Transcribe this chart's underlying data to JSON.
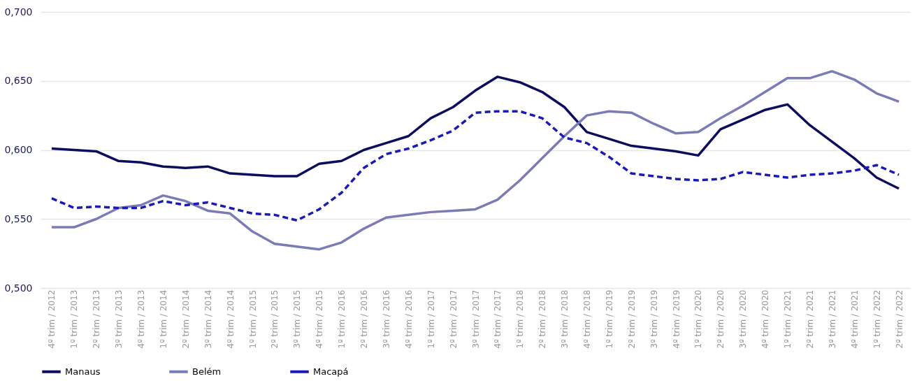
{
  "chart_data": {
    "type": "line",
    "categories": [
      "4º trim / 2012",
      "1º trim / 2013",
      "2º trim / 2013",
      "3º trim / 2013",
      "4º trim / 2013",
      "1º trim / 2014",
      "2º trim / 2014",
      "3º trim / 2014",
      "4º trim / 2014",
      "1º trim / 2015",
      "2º trim / 2015",
      "3º trim / 2015",
      "4º trim / 2015",
      "1º trim / 2016",
      "2º trim / 2016",
      "3º trim / 2016",
      "4º trim / 2016",
      "1º trim / 2017",
      "2º trim / 2017",
      "3º trim / 2017",
      "4º trim / 2017",
      "1º trim / 2018",
      "2º trim / 2018",
      "3º trim / 2018",
      "4º trim / 2018",
      "1º trim / 2019",
      "2º trim / 2019",
      "3º trim / 2019",
      "4º trim / 2019",
      "1º trim / 2020",
      "2º trim / 2020",
      "3º trim / 2020",
      "4º trim / 2020",
      "1º trim / 2021",
      "2º trim / 2021",
      "3º trim / 2021",
      "4º trim / 2021",
      "1º trim / 2022",
      "2º trim / 2022"
    ],
    "series": [
      {
        "name": "Manaus",
        "color": "#0d0d5e",
        "line_style": "solid",
        "values": [
          0.601,
          0.6,
          0.599,
          0.592,
          0.591,
          0.588,
          0.587,
          0.588,
          0.583,
          0.582,
          0.581,
          0.581,
          0.59,
          0.592,
          0.6,
          0.605,
          0.61,
          0.623,
          0.631,
          0.643,
          0.653,
          0.649,
          0.642,
          0.631,
          0.613,
          0.608,
          0.603,
          0.601,
          0.599,
          0.596,
          0.615,
          0.622,
          0.629,
          0.633,
          0.618,
          0.606,
          0.594,
          0.58,
          0.572
        ]
      },
      {
        "name": "Belém",
        "color": "#7b7bb5",
        "line_style": "solid",
        "values": [
          0.544,
          0.544,
          0.55,
          0.558,
          0.56,
          0.567,
          0.563,
          0.556,
          0.554,
          0.541,
          0.532,
          0.53,
          0.528,
          0.533,
          0.543,
          0.551,
          0.553,
          0.555,
          0.556,
          0.557,
          0.564,
          0.578,
          0.594,
          0.61,
          0.625,
          0.628,
          0.627,
          0.619,
          0.612,
          0.613,
          0.623,
          0.632,
          0.642,
          0.652,
          0.652,
          0.657,
          0.651,
          0.641,
          0.635
        ]
      },
      {
        "name": "Macapá",
        "color": "#1a1ab5",
        "line_style": "dashed",
        "values": [
          0.565,
          0.558,
          0.559,
          0.558,
          0.558,
          0.563,
          0.56,
          0.562,
          0.558,
          0.554,
          0.553,
          0.549,
          0.557,
          0.569,
          0.587,
          0.597,
          0.601,
          0.607,
          0.614,
          0.627,
          0.628,
          0.628,
          0.623,
          0.609,
          0.605,
          0.595,
          0.583,
          0.581,
          0.579,
          0.578,
          0.579,
          0.584,
          0.582,
          0.58,
          0.582,
          0.583,
          0.585,
          0.589,
          0.582
        ]
      }
    ],
    "ylim": [
      0.5,
      0.7
    ],
    "yticks": [
      {
        "value": 0.5,
        "label": "0,500"
      },
      {
        "value": 0.55,
        "label": "0,550"
      },
      {
        "value": 0.6,
        "label": "0,600"
      },
      {
        "value": 0.65,
        "label": "0,650"
      },
      {
        "value": 0.7,
        "label": "0,700"
      }
    ],
    "grid": "y",
    "legend": "bottom",
    "marker": "none"
  }
}
